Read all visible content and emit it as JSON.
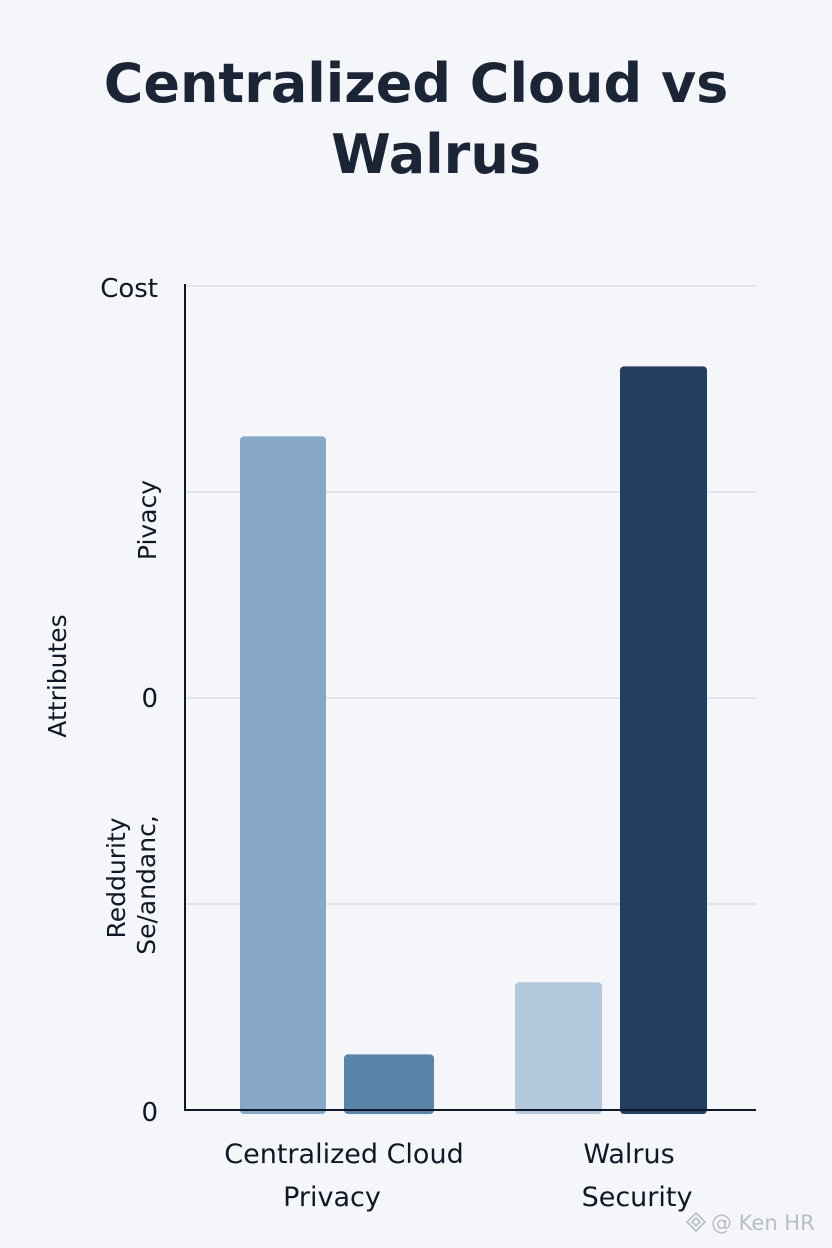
{
  "chart_data": {
    "type": "bar",
    "title_lines": [
      "Centralized Cloud vs",
      "Walrus"
    ],
    "ylabel": "Attributes",
    "y_tick_labels": [
      "Cost",
      "Pivacy",
      "0",
      "Reddurity",
      "Se/andanc,",
      "0"
    ],
    "ylim": [
      0,
      4
    ],
    "grid": true,
    "groups": [
      {
        "label_lines": [
          "Centralized Cloud",
          "Privacy"
        ]
      },
      {
        "label_lines": [
          "Walrus",
          "Security"
        ]
      }
    ],
    "bars": [
      {
        "group": 0,
        "value": 3.27,
        "color": "#87a7c7"
      },
      {
        "group": 0,
        "value": 0.27,
        "color": "#5a84aa"
      },
      {
        "group": 1,
        "value": 0.62,
        "color": "#b3c7dd"
      },
      {
        "group": 1,
        "value": 3.61,
        "color": "#233e61"
      }
    ]
  },
  "watermark": {
    "text": "@ Ken HR",
    "icon": "diamond-logo-icon"
  }
}
